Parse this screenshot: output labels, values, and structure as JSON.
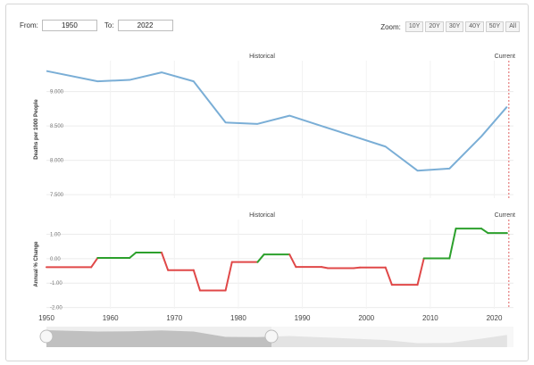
{
  "controls": {
    "from_label": "From:",
    "from_value": "1950",
    "to_label": "To:",
    "to_value": "2022",
    "zoom_label": "Zoom:",
    "zoom_options": [
      "10Y",
      "20Y",
      "30Y",
      "40Y",
      "50Y",
      "All"
    ]
  },
  "colors": {
    "line": "#7aaed6",
    "increase": "#2ca02c",
    "decrease": "#e04848",
    "current_marker": "#e06060",
    "navigator": "#d9d9d9",
    "navigator_fill": "#9a9a9a"
  },
  "chart_data": [
    {
      "type": "line",
      "title": "Historical",
      "marker_label": "Current",
      "ylabel": "Deaths per 1000 People",
      "ytick_labels": [
        "9.000",
        "8.500",
        "8.000",
        "7.500"
      ],
      "ylim": [
        7.45,
        9.45
      ],
      "xlim": [
        1950,
        2023
      ],
      "grid": true,
      "x": [
        1950,
        1958,
        1963,
        1968,
        1973,
        1978,
        1983,
        1988,
        1993,
        1998,
        2003,
        2008,
        2013,
        2018,
        2022
      ],
      "y": [
        9.3,
        9.15,
        9.17,
        9.28,
        9.15,
        8.55,
        8.53,
        8.65,
        8.5,
        8.35,
        8.2,
        7.85,
        7.88,
        8.35,
        8.78
      ]
    },
    {
      "type": "line",
      "title": "Historical",
      "marker_label": "Current",
      "ylabel": "Annual % Change",
      "ytick_labels": [
        "1.00",
        "0.00",
        "-1.00",
        "-2.00"
      ],
      "ylim": [
        -2.05,
        1.6
      ],
      "xlim": [
        1950,
        2023
      ],
      "xtick_labels": [
        "1950",
        "1960",
        "1970",
        "1980",
        "1990",
        "2000",
        "2010",
        "2020"
      ],
      "x": [
        1950,
        1957,
        1958,
        1963,
        1964,
        1968,
        1969,
        1973,
        1974,
        1978,
        1979,
        1983,
        1984,
        1988,
        1989,
        1993,
        1994,
        1998,
        1999,
        2003,
        2004,
        2008,
        2009,
        2013,
        2014,
        2018,
        2019,
        2022
      ],
      "y": [
        -0.35,
        -0.35,
        0.03,
        0.03,
        0.25,
        0.25,
        -0.47,
        -0.47,
        -1.3,
        -1.3,
        -0.14,
        -0.14,
        0.17,
        0.17,
        -0.34,
        -0.34,
        -0.39,
        -0.39,
        -0.36,
        -0.36,
        -1.07,
        -1.07,
        0.01,
        0.01,
        1.23,
        1.23,
        1.05,
        1.05
      ]
    }
  ]
}
